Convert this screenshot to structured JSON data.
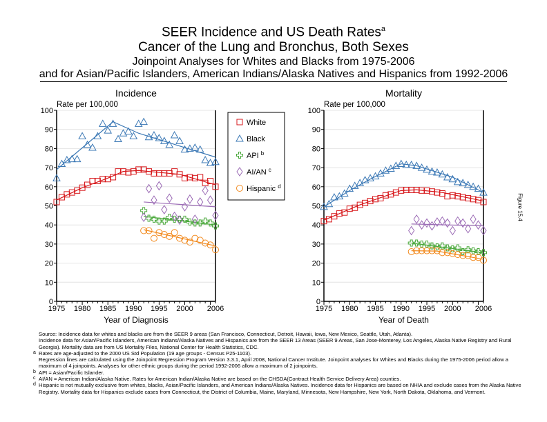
{
  "title": {
    "line1": "SEER Incidence and US Death Rates",
    "line1_sup": "a",
    "line2": "Cancer of the Lung and Bronchus, Both Sexes",
    "line3": "Joinpoint Analyses for Whites and Blacks from 1975-2006",
    "line4": "and for Asian/Pacific Islanders, American Indians/Alaska Natives and Hispanics from 1992-2006"
  },
  "figure_label": "Figure 15.4",
  "legend": [
    {
      "name": "White",
      "sup": "",
      "color": "#d7191c",
      "marker": "square"
    },
    {
      "name": "Black",
      "sup": "",
      "color": "#3b78b5",
      "marker": "triangle"
    },
    {
      "name": "API",
      "sup": "b",
      "color": "#4aa83b",
      "marker": "plus"
    },
    {
      "name": "AI/AN",
      "sup": "c",
      "color": "#9b6bb5",
      "marker": "diamond"
    },
    {
      "name": "Hispanic",
      "sup": "d",
      "color": "#f28a1e",
      "marker": "circle"
    }
  ],
  "chart_data": [
    {
      "type": "scatter",
      "title": "Incidence",
      "ylabel": "Rate per 100,000",
      "xlabel": "Year of Diagnosis",
      "xlim": [
        1975,
        2006
      ],
      "ylim": [
        0,
        100
      ],
      "xticks": [
        1975,
        1980,
        1985,
        1990,
        1995,
        2000,
        2006
      ],
      "yticks": [
        0,
        10,
        20,
        30,
        40,
        50,
        60,
        70,
        80,
        90,
        100
      ],
      "grid": true,
      "series": [
        {
          "name": "White",
          "x_start": 1975,
          "values": [
            52,
            54.5,
            56,
            57,
            58,
            59.5,
            61,
            63,
            63,
            64,
            64,
            65,
            68,
            68,
            67.5,
            68,
            69,
            69,
            68,
            67,
            67,
            67,
            67,
            68,
            66.5,
            64.5,
            65,
            64.5,
            65,
            62,
            63,
            60
          ],
          "trend": [
            [
              1975,
              53
            ],
            [
              1980,
              59.5
            ],
            [
              1985,
              64.5
            ],
            [
              1988,
              68
            ],
            [
              1991,
              68.5
            ],
            [
              1999,
              66.5
            ],
            [
              2006,
              61
            ]
          ]
        },
        {
          "name": "Black",
          "x_start": 1975,
          "values": [
            64.5,
            72,
            74,
            74.5,
            74.5,
            86.5,
            82,
            80.5,
            86.5,
            93,
            89.5,
            93,
            85,
            88,
            89,
            86.5,
            93,
            94,
            86,
            87,
            85.5,
            84,
            82,
            87,
            84,
            79.5,
            80,
            80.5,
            79.5,
            74,
            72.5,
            73
          ],
          "trend": [
            [
              1975,
              69
            ],
            [
              1986,
              94
            ],
            [
              1991,
              88
            ],
            [
              2006,
              75.5
            ]
          ]
        },
        {
          "name": "API",
          "x_start": 1992,
          "values": [
            47.5,
            43.5,
            43,
            42,
            42,
            44,
            43,
            43,
            43,
            41.5,
            41,
            41,
            42,
            41,
            39.5
          ],
          "trend": [
            [
              1992,
              44.5
            ],
            [
              2006,
              40
            ]
          ]
        },
        {
          "name": "AI/AN",
          "x_start": 1992,
          "values": [
            44,
            59,
            53,
            60.5,
            48,
            54,
            44.5,
            42.5,
            49.5,
            53.5,
            43,
            52,
            58,
            53,
            45
          ],
          "trend": [
            [
              1992,
              52
            ],
            [
              2006,
              49.5
            ]
          ]
        },
        {
          "name": "Hispanic",
          "x_start": 1992,
          "values": [
            37,
            37,
            33,
            36,
            35,
            34,
            36,
            33,
            32,
            31,
            33,
            32,
            30.5,
            29.5,
            27
          ],
          "trend": [
            [
              1992,
              37.5
            ],
            [
              2006,
              29
            ]
          ]
        }
      ]
    },
    {
      "type": "scatter",
      "title": "Mortality",
      "ylabel": "Rate per 100,000",
      "xlabel": "Year of Death",
      "xlim": [
        1975,
        2006
      ],
      "ylim": [
        0,
        100
      ],
      "xticks": [
        1975,
        1980,
        1985,
        1990,
        1995,
        2000,
        2006
      ],
      "yticks": [
        0,
        10,
        20,
        30,
        40,
        50,
        60,
        70,
        80,
        90,
        100
      ],
      "grid": true,
      "series": [
        {
          "name": "White",
          "x_start": 1975,
          "values": [
            42,
            43,
            44.5,
            46,
            46.5,
            48.5,
            49,
            50.5,
            51.5,
            52.5,
            53.5,
            54,
            55.5,
            56,
            57,
            58,
            58.3,
            58.3,
            58.3,
            58,
            58,
            57.5,
            57,
            56.5,
            55,
            55.5,
            55,
            54.5,
            54,
            53.5,
            53,
            52
          ],
          "trend": [
            [
              1975,
              42.5
            ],
            [
              1982,
              50.5
            ],
            [
              1990,
              58
            ],
            [
              1993,
              58.4
            ],
            [
              1998,
              57
            ],
            [
              2006,
              52.5
            ]
          ]
        },
        {
          "name": "Black",
          "x_start": 1975,
          "values": [
            49.5,
            51,
            54.5,
            55,
            56.5,
            59,
            60.5,
            62,
            63.5,
            64.5,
            65.5,
            67,
            68.5,
            69.5,
            71,
            72,
            71.5,
            71.5,
            71,
            70,
            69,
            68,
            67.5,
            66.5,
            65,
            64,
            62.5,
            62,
            61,
            60,
            59,
            57
          ],
          "trend": [
            [
              1975,
              49.5
            ],
            [
              1980,
              58
            ],
            [
              1984,
              64
            ],
            [
              1990,
              72
            ],
            [
              1993,
              71
            ],
            [
              2000,
              65
            ],
            [
              2006,
              57
            ]
          ]
        },
        {
          "name": "API",
          "x_start": 1992,
          "values": [
            30.5,
            30.5,
            30,
            30,
            29,
            28.5,
            29,
            28,
            27.5,
            28,
            26,
            27,
            26.5,
            26,
            25.5
          ],
          "trend": [
            [
              1992,
              30.5
            ],
            [
              2006,
              25.5
            ]
          ]
        },
        {
          "name": "AI/AN",
          "x_start": 1992,
          "values": [
            37,
            43,
            40,
            41,
            39.5,
            41.5,
            42,
            41,
            37,
            42,
            41,
            38,
            43,
            40,
            37
          ],
          "trend": [
            [
              1992,
              40.5
            ],
            [
              2006,
              39.5
            ]
          ]
        },
        {
          "name": "Hispanic",
          "x_start": 1992,
          "values": [
            26,
            26.5,
            26.5,
            26.5,
            26.5,
            26.5,
            25.5,
            25.5,
            25,
            24.5,
            24,
            24,
            23,
            23,
            21.5
          ],
          "trend": [
            [
              1992,
              26.5
            ],
            [
              1997,
              26.3
            ],
            [
              2006,
              22
            ]
          ]
        }
      ]
    }
  ],
  "notes": [
    {
      "mark": "",
      "text": "Source:  Incidence data for whites and blacks are from the SEER 9 areas (San Francisco, Connecticut, Detroit, Hawaii, Iowa, New Mexico, Seattle, Utah, Atlanta)."
    },
    {
      "mark": "",
      "text": "Incidence data for Asian/Pacific Islanders, American Indians/Alaska Natives and Hispanics are from the SEER 13 Areas (SEER 9 Areas, San Jose-Monterey, Los Angeles, Alaska Native Registry and Rural Georgia).  Mortality data are from US Mortality Files, National Center for Health Statistics, CDC."
    },
    {
      "mark": "a",
      "text": "Rates are age-adjusted to the 2000 US Std Population (19 age groups - Census P25-1103)."
    },
    {
      "mark": "",
      "text": "Regression lines are calculated using the Joinpoint Regression Program Version 3.3.1, April 2008, National Cancer Institute.  Joinpoint analyses for Whites and Blacks during the 1975-2006 period allow a maximum of 4 joinpoints. Analyses for other ethnic groups during the period 1992-2006 allow a maximum of 2 joinpoints."
    },
    {
      "mark": "b",
      "text": "API = Asian/Pacific Islander."
    },
    {
      "mark": "c",
      "text": "AI/AN = American Indian/Alaska Native.  Rates for American Indian/Alaska Native are based on the CHSDA(Contract Health Service Delivery Area) counties."
    },
    {
      "mark": "d",
      "text": "Hispanic is not mutually exclusive from whites, blacks, Asian/Pacific Islanders, and American Indians/Alaska Natives.  Incidence data for Hispanics are based on NHIA and exclude cases from the Alaska Native Registry.  Mortality data for Hispanics exclude cases from Connecticut, the District of Columbia, Maine, Maryland, Minnesota, New Hampshire, New York, North Dakota, Oklahoma, and Vermont."
    }
  ]
}
